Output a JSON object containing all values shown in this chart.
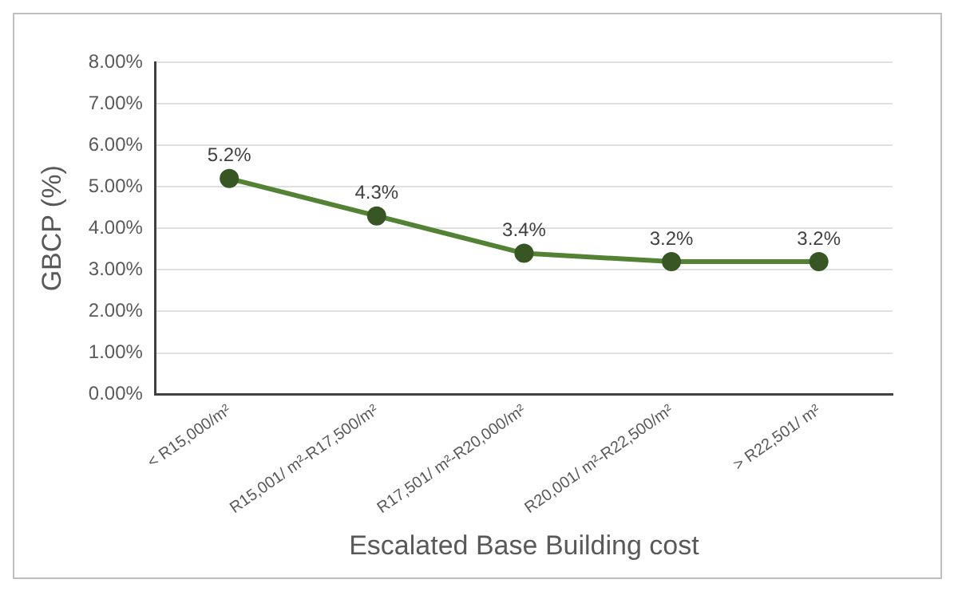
{
  "chart_data": {
    "type": "line",
    "xlabel": "Escalated Base Building cost",
    "ylabel": "GBCP (%)",
    "categories": [
      "< R15,000/m²",
      "R15,001/ m²-R17,500/m²",
      "R17,501/ m²-R20,000/m²",
      "R20,001/ m²-R22,500/m²",
      "> R22,501/ m²"
    ],
    "series": [
      {
        "color": "#548235",
        "values": [
          5.2,
          4.3,
          3.4,
          3.2,
          3.2
        ],
        "value_labels": [
          "5.2%",
          "4.3%",
          "3.4%",
          "3.2%",
          "3.2%"
        ]
      }
    ],
    "ylim": [
      0,
      8
    ],
    "yticks": [
      {
        "value": 0,
        "label": "0.00%"
      },
      {
        "value": 1,
        "label": "1.00%"
      },
      {
        "value": 2,
        "label": "2.00%"
      },
      {
        "value": 3,
        "label": "3.00%"
      },
      {
        "value": 4,
        "label": "4.00%"
      },
      {
        "value": 5,
        "label": "5.00%"
      },
      {
        "value": 6,
        "label": "6.00%"
      },
      {
        "value": 7,
        "label": "7.00%"
      },
      {
        "value": 8,
        "label": "8.00%"
      }
    ],
    "grid": "y",
    "legend": false,
    "marker": "circle",
    "line_style": "solid"
  }
}
